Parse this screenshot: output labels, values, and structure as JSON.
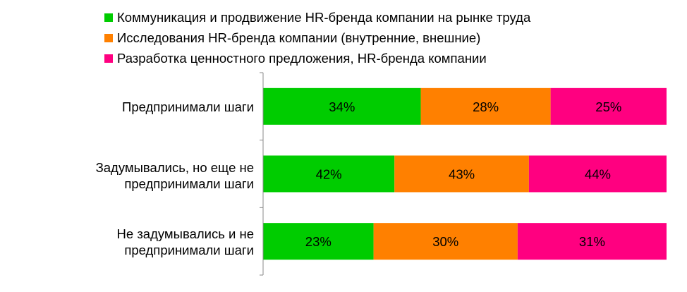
{
  "chart_data": {
    "type": "bar",
    "orientation": "horizontal",
    "stacked": true,
    "normalized": true,
    "categories": [
      "Предпринимали  шаги",
      "Задумывались, но еще не предпринимали  шаги",
      "Не задумывались и не предпринимали  шаги"
    ],
    "category_lines": [
      [
        "Предпринимали  шаги"
      ],
      [
        "Задумывались, но еще не",
        "предпринимали  шаги"
      ],
      [
        "Не задумывались и не",
        "предпринимали  шаги"
      ]
    ],
    "series": [
      {
        "name": "Коммуникация  и продвижение  HR-бренда компании  на рынке труда",
        "color": "#00CC00",
        "values": [
          34,
          42,
          23
        ],
        "labels": [
          "34%",
          "42%",
          "23%"
        ]
      },
      {
        "name": "Исследования  HR-бренда компании  (внутренние, внешние)",
        "color": "#FF8000",
        "values": [
          28,
          43,
          30
        ],
        "labels": [
          "28%",
          "43%",
          "30%"
        ]
      },
      {
        "name": "Разработка ценностного предложения,  HR-бренда компании",
        "color": "#FF0080",
        "values": [
          25,
          44,
          31
        ],
        "labels": [
          "25%",
          "44%",
          "31%"
        ]
      }
    ],
    "legend_position": "top",
    "grid": false
  }
}
